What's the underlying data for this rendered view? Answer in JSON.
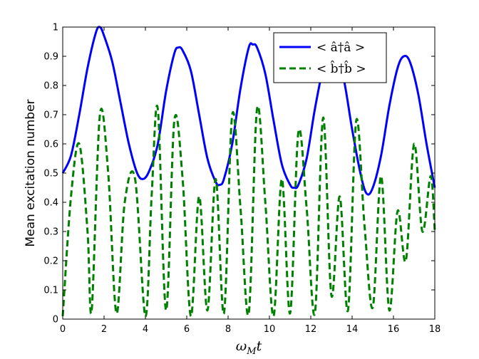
{
  "chart_data": {
    "type": "line",
    "title": "",
    "xlabel": "ω_M t",
    "xlabel_main": "ω",
    "xlabel_sub": "M",
    "xlabel_tail": "t",
    "ylabel": "Mean excitation number",
    "xlim": [
      0,
      18
    ],
    "ylim": [
      0,
      1
    ],
    "xticks": [
      "0",
      "2",
      "4",
      "6",
      "8",
      "10",
      "12",
      "14",
      "16",
      "18"
    ],
    "yticks": [
      "0",
      "0.1",
      "0.2",
      "0.3",
      "0.4",
      "0.5",
      "0.6",
      "0.7",
      "0.8",
      "0.9",
      "1"
    ],
    "grid": false,
    "legend_position": "top-right",
    "series": [
      {
        "name": "< â†â >",
        "color": "#0000ff",
        "style": "solid",
        "x": [
          0,
          0.4,
          0.8,
          1.2,
          1.6,
          1.8,
          2.0,
          2.4,
          2.8,
          3.2,
          3.6,
          3.9,
          4.2,
          4.6,
          5.0,
          5.4,
          5.6,
          5.8,
          6.2,
          6.6,
          7.0,
          7.4,
          7.6,
          7.8,
          8.2,
          8.6,
          9.0,
          9.2,
          9.4,
          9.8,
          10.2,
          10.6,
          11.0,
          11.2,
          11.4,
          11.8,
          12.2,
          12.6,
          12.9,
          13.2,
          13.6,
          14.0,
          14.4,
          14.7,
          15.0,
          15.4,
          15.8,
          16.2,
          16.5,
          16.8,
          17.2,
          17.6,
          18.0
        ],
        "y": [
          0.5,
          0.56,
          0.7,
          0.86,
          0.98,
          1.0,
          0.97,
          0.88,
          0.74,
          0.6,
          0.5,
          0.48,
          0.51,
          0.6,
          0.78,
          0.91,
          0.93,
          0.92,
          0.85,
          0.7,
          0.55,
          0.47,
          0.46,
          0.48,
          0.6,
          0.79,
          0.93,
          0.94,
          0.93,
          0.84,
          0.68,
          0.53,
          0.46,
          0.45,
          0.46,
          0.55,
          0.72,
          0.86,
          0.92,
          0.91,
          0.82,
          0.65,
          0.5,
          0.43,
          0.45,
          0.56,
          0.73,
          0.86,
          0.9,
          0.88,
          0.77,
          0.6,
          0.45
        ]
      },
      {
        "name": "< b̂†b̂ >",
        "color": "#008000",
        "style": "dashed",
        "x": [
          0,
          0.4,
          0.8,
          1.2,
          1.4,
          1.8,
          2.2,
          2.6,
          3.0,
          3.5,
          4.0,
          4.3,
          4.6,
          5.0,
          5.4,
          5.8,
          6.2,
          6.6,
          7.0,
          7.4,
          7.8,
          8.2,
          8.6,
          9.0,
          9.4,
          9.8,
          10.2,
          10.6,
          11.0,
          11.4,
          11.8,
          12.2,
          12.6,
          13.0,
          13.4,
          13.8,
          14.2,
          14.6,
          15.0,
          15.4,
          15.8,
          16.2,
          16.6,
          17.0,
          17.4,
          17.8,
          18.0
        ],
        "y": [
          0.01,
          0.42,
          0.6,
          0.3,
          0.03,
          0.7,
          0.5,
          0.02,
          0.4,
          0.48,
          0.01,
          0.42,
          0.72,
          0.03,
          0.68,
          0.48,
          0.01,
          0.42,
          0.03,
          0.48,
          0.02,
          0.7,
          0.38,
          0.02,
          0.72,
          0.4,
          0.01,
          0.48,
          0.02,
          0.64,
          0.38,
          0.02,
          0.69,
          0.08,
          0.42,
          0.03,
          0.68,
          0.32,
          0.04,
          0.49,
          0.03,
          0.37,
          0.2,
          0.6,
          0.3,
          0.49,
          0.3
        ]
      }
    ]
  }
}
